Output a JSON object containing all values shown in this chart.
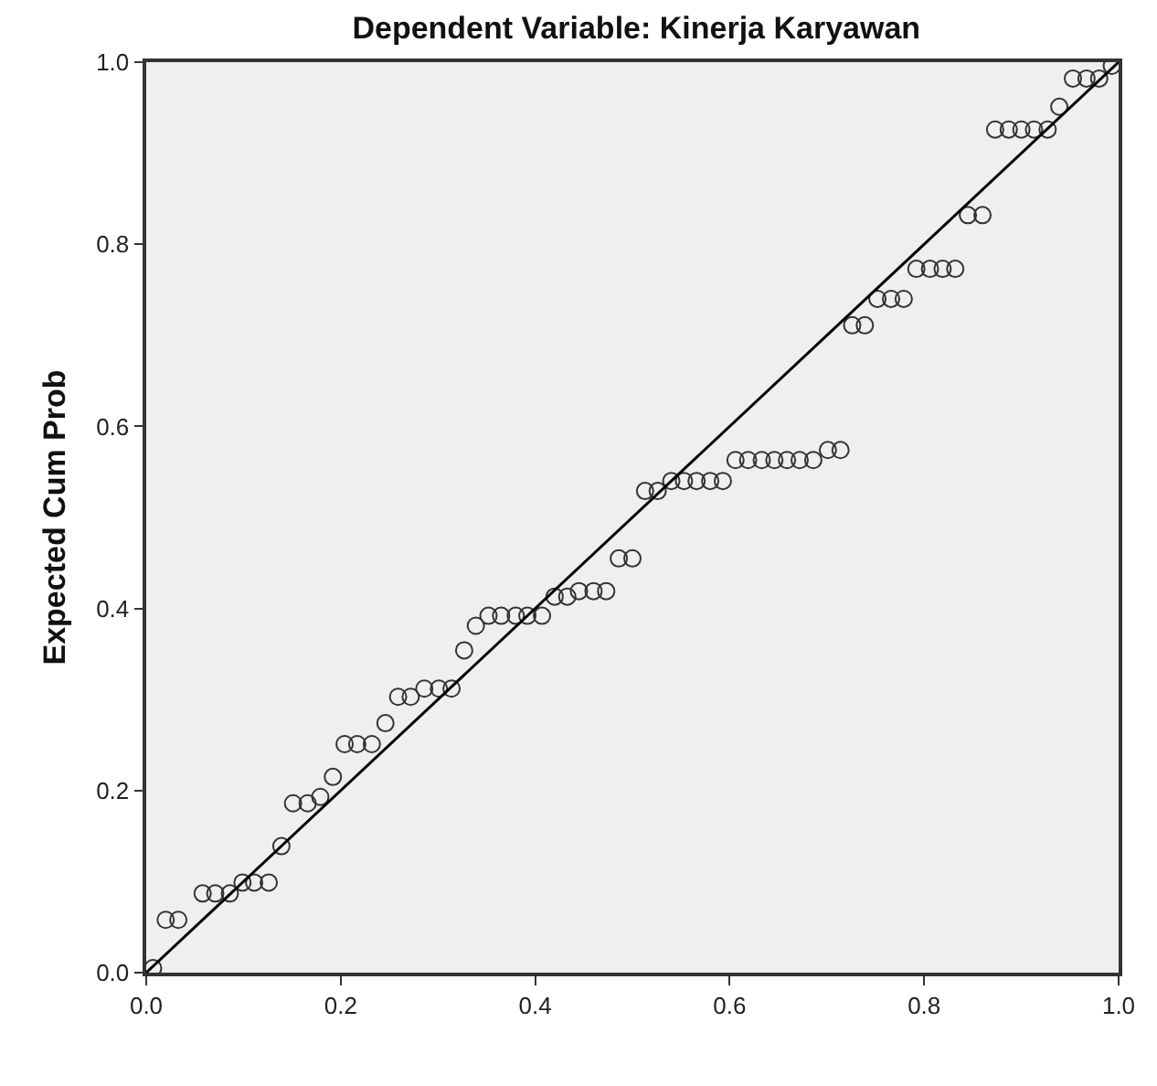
{
  "chart_data": {
    "type": "scatter",
    "title": "Dependent Variable: Kinerja Karyawan",
    "ylabel": "Expected Cum Prob",
    "xlim": [
      0,
      1
    ],
    "ylim": [
      0,
      1
    ],
    "xticks": [
      {
        "value": 0,
        "label": "0.0"
      },
      0.2,
      0.4,
      0.6,
      0.8,
      {
        "value": 1,
        "label": "1.0"
      }
    ],
    "yticks": [
      {
        "value": 0,
        "label": "0.0"
      },
      0.2,
      0.4,
      0.6,
      0.8,
      {
        "value": 1,
        "label": "1.0"
      }
    ],
    "grid": false,
    "marker": "circle",
    "series": [
      {
        "color": "#333333",
        "x": [
          0.007,
          0.02,
          0.033,
          0.058,
          0.071,
          0.086,
          0.099,
          0.111,
          0.126,
          0.139,
          0.151,
          0.166,
          0.179,
          0.192,
          0.204,
          0.217,
          0.232,
          0.246,
          0.259,
          0.272,
          0.286,
          0.301,
          0.314,
          0.327,
          0.339,
          0.352,
          0.365,
          0.38,
          0.392,
          0.407,
          0.42,
          0.433,
          0.445,
          0.46,
          0.473,
          0.486,
          0.5,
          0.513,
          0.526,
          0.54,
          0.553,
          0.566,
          0.58,
          0.593,
          0.606,
          0.619,
          0.633,
          0.646,
          0.659,
          0.672,
          0.686,
          0.701,
          0.714,
          0.726,
          0.739,
          0.752,
          0.766,
          0.779,
          0.792,
          0.806,
          0.819,
          0.832,
          0.845,
          0.86,
          0.873,
          0.887,
          0.9,
          0.913,
          0.927,
          0.939,
          0.953,
          0.967,
          0.98,
          0.993
        ],
        "values": [
          0.005,
          0.058,
          0.058,
          0.087,
          0.087,
          0.087,
          0.099,
          0.099,
          0.099,
          0.139,
          0.186,
          0.186,
          0.193,
          0.215,
          0.251,
          0.251,
          0.251,
          0.274,
          0.303,
          0.303,
          0.312,
          0.312,
          0.312,
          0.354,
          0.381,
          0.392,
          0.392,
          0.392,
          0.392,
          0.392,
          0.413,
          0.413,
          0.419,
          0.419,
          0.419,
          0.455,
          0.455,
          0.529,
          0.529,
          0.54,
          0.54,
          0.54,
          0.54,
          0.54,
          0.563,
          0.563,
          0.563,
          0.563,
          0.563,
          0.563,
          0.563,
          0.574,
          0.574,
          0.711,
          0.711,
          0.74,
          0.74,
          0.74,
          0.773,
          0.773,
          0.773,
          0.773,
          0.832,
          0.832,
          0.926,
          0.926,
          0.926,
          0.926,
          0.926,
          0.951,
          0.982,
          0.982,
          0.982,
          0.996
        ]
      },
      {
        "type": "line",
        "color": "#000000",
        "x": [
          0,
          1
        ],
        "values": [
          0,
          1
        ],
        "marker": "none",
        "line_style": "solid"
      }
    ]
  }
}
